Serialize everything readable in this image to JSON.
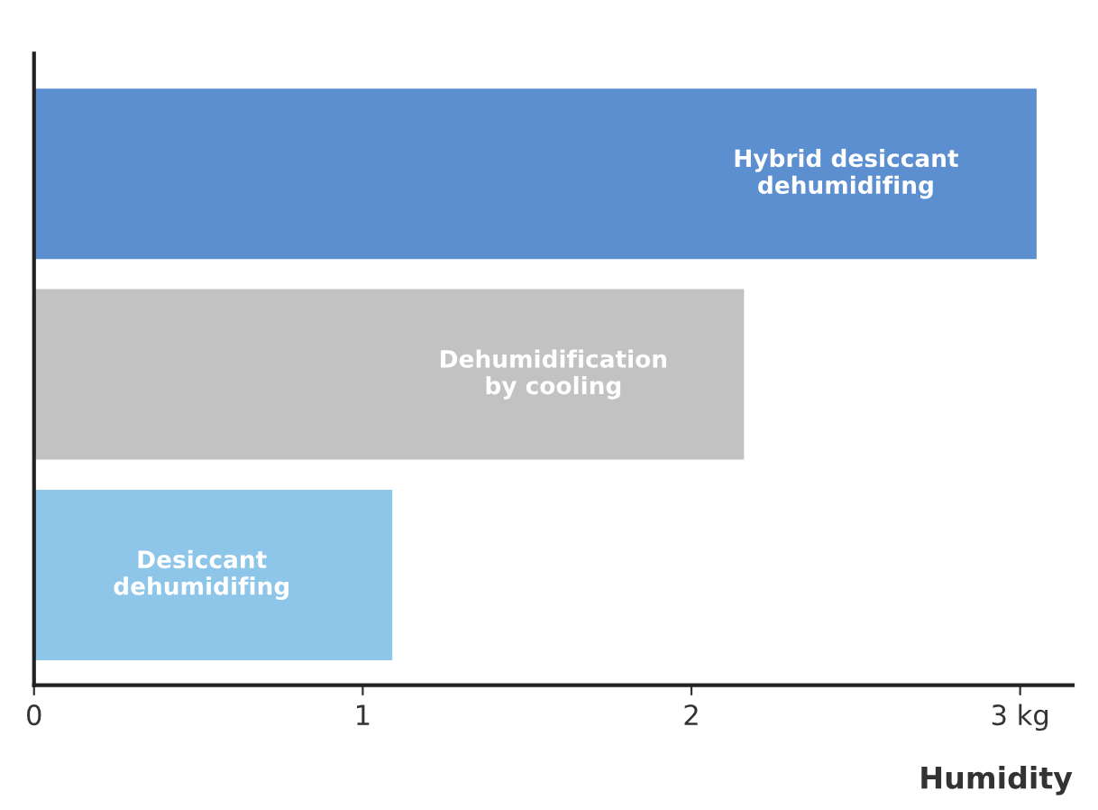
{
  "chart_data": {
    "type": "bar",
    "orientation": "horizontal",
    "categories": [
      "Hybrid desiccant\ndehumidifing",
      "Dehumidification\nby cooling",
      "Desiccant\ndehumidifing"
    ],
    "values": [
      3.05,
      2.16,
      1.09
    ],
    "colors": [
      "#5b8fd0",
      "#c2c2c2",
      "#8ec6ea"
    ],
    "xlabel": "Humidity",
    "xlim": [
      0,
      3.16
    ],
    "xticks": [
      0,
      1,
      2,
      {
        "value": 3,
        "label": "3 kg"
      }
    ],
    "grid": false,
    "legend": false
  }
}
